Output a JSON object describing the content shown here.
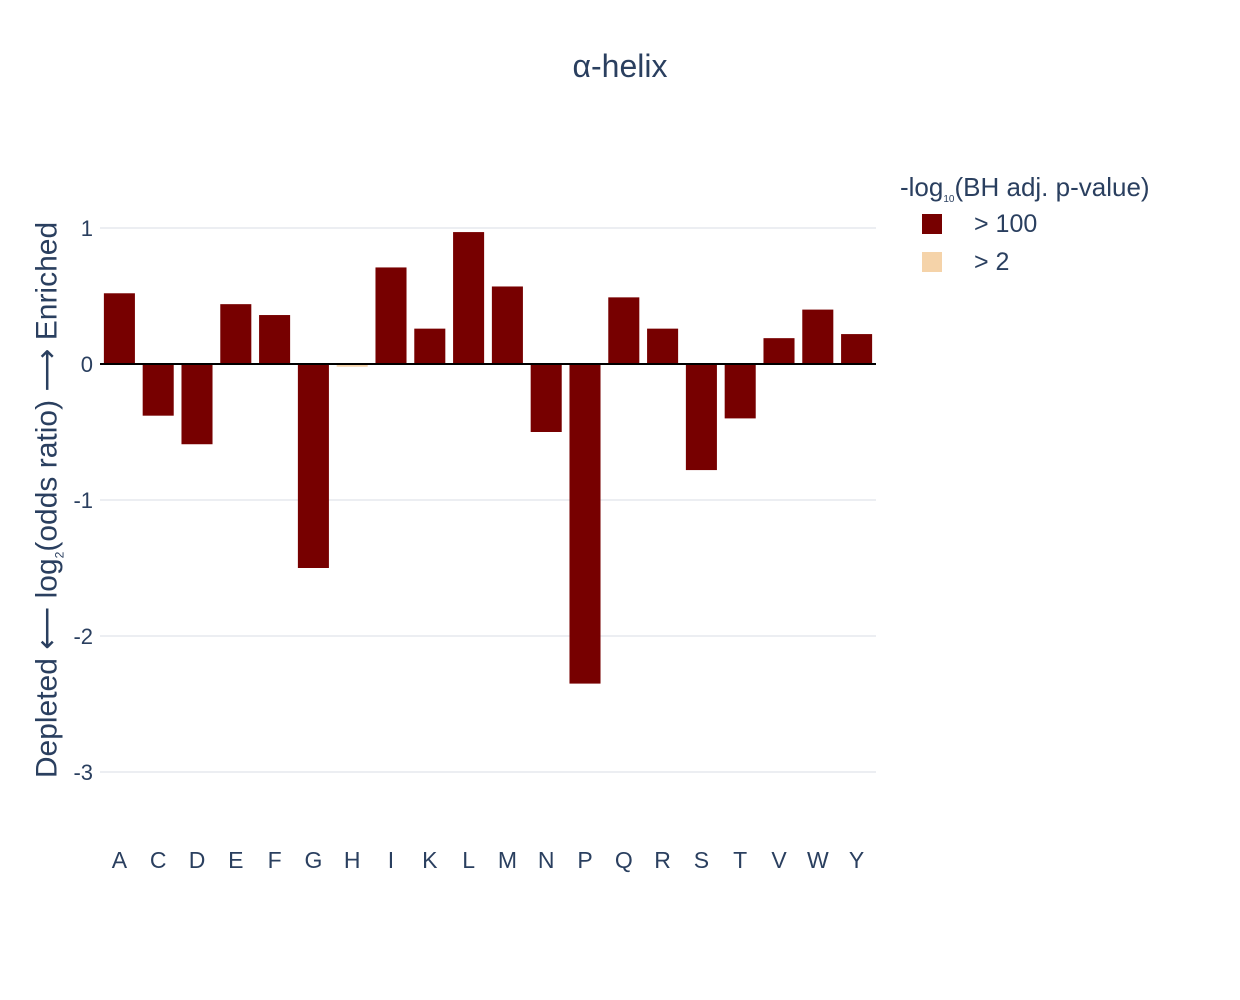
{
  "chart_data": {
    "type": "bar",
    "title": "α-helix",
    "ylabel": {
      "before": "Depleted ⟵ log",
      "sub": "2",
      "after": "(odds ratio) ⟶ Enriched"
    },
    "xlabel": "",
    "ylim": [
      -3.45,
      1.3
    ],
    "yticks": [
      1,
      0,
      -1,
      -2,
      -3
    ],
    "ytick_labels": [
      "1",
      "0",
      "-1",
      "-2",
      "-3"
    ],
    "grid": true,
    "categories": [
      "A",
      "C",
      "D",
      "E",
      "F",
      "G",
      "H",
      "I",
      "K",
      "L",
      "M",
      "N",
      "P",
      "Q",
      "R",
      "S",
      "T",
      "V",
      "W",
      "Y"
    ],
    "values": [
      0.52,
      -0.38,
      -0.59,
      0.44,
      0.36,
      -1.5,
      -0.02,
      0.71,
      0.26,
      0.97,
      0.57,
      -0.5,
      -2.35,
      0.49,
      0.26,
      -0.78,
      -0.4,
      0.19,
      0.4,
      0.22
    ],
    "significance": [
      ">100",
      ">100",
      ">100",
      ">100",
      ">100",
      ">100",
      ">2",
      ">100",
      ">100",
      ">100",
      ">100",
      ">100",
      ">100",
      ">100",
      ">100",
      ">100",
      ">100",
      ">100",
      ">100",
      ">100"
    ],
    "legend": {
      "title": {
        "before": "-log",
        "sub": "10",
        "after": "(BH adj. p-value)"
      },
      "placement": "top-right",
      "entries": [
        {
          "key": ">100",
          "label": "> 100",
          "color": "#770000"
        },
        {
          "key": ">2",
          "label": "> 2",
          "color": "#f5d3a9"
        }
      ]
    },
    "colors": {
      "grid": "#e5e8ee",
      "zeroline": "#000000",
      "text": "#2a3f5f"
    }
  }
}
